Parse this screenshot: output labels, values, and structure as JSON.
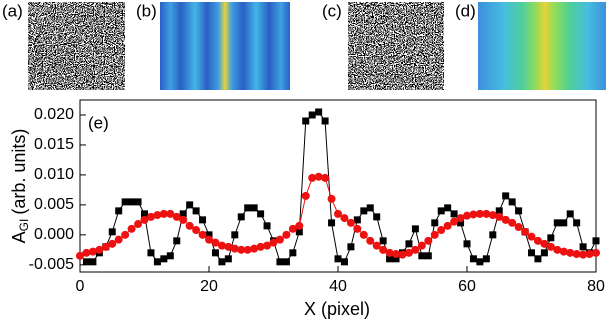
{
  "panels": {
    "labels": [
      "(a)",
      "(b)",
      "(c)",
      "(d)"
    ]
  },
  "chart_data": {
    "type": "line",
    "panel_label": "(e)",
    "x_label": "X (pixel)",
    "y_label": {
      "main": "A",
      "sub": "GI",
      "rest": "(arb. units)"
    },
    "xlim": [
      0,
      80
    ],
    "xticks": [
      0,
      20,
      40,
      60,
      80
    ],
    "ylim": [
      -0.0062,
      0.0225
    ],
    "yticks": [
      -0.005,
      {
        "value": 0,
        "label": "0.000"
      },
      0.005,
      {
        "value": 0.01,
        "label": "0.010"
      },
      0.015,
      {
        "value": 0.02,
        "label": "0.020"
      }
    ],
    "grid": false,
    "series": [
      {
        "color": "#000000",
        "marker": "square",
        "x": [
          1,
          2,
          3,
          4,
          5,
          6,
          7,
          8,
          9,
          10,
          11,
          12,
          13,
          14,
          15,
          16,
          17,
          18,
          19,
          20,
          21,
          22,
          23,
          24,
          25,
          26,
          27,
          28,
          29,
          30,
          31,
          32,
          33,
          34,
          35,
          36,
          37,
          38,
          39,
          40,
          41,
          42,
          43,
          44,
          45,
          46,
          47,
          48,
          49,
          50,
          51,
          52,
          53,
          54,
          55,
          56,
          57,
          58,
          59,
          60,
          61,
          62,
          63,
          64,
          65,
          66,
          67,
          68,
          69,
          70,
          71,
          72,
          73,
          74,
          75,
          76,
          77,
          78,
          79,
          80
        ],
        "values": [
          -0.0045,
          -0.0045,
          -0.003,
          -0.002,
          0.0005,
          0.004,
          0.0055,
          0.0055,
          0.0055,
          0.0035,
          -0.003,
          -0.0045,
          -0.004,
          -0.0035,
          -0.001,
          0.0035,
          0.005,
          0.004,
          0.0025,
          0.0,
          -0.003,
          -0.0045,
          -0.004,
          0.0,
          0.003,
          0.0045,
          0.0045,
          0.0035,
          0.0015,
          -0.001,
          -0.0045,
          -0.0045,
          -0.003,
          0.0005,
          0.019,
          0.02,
          0.0205,
          0.019,
          0.002,
          -0.004,
          -0.0045,
          -0.002,
          0.0025,
          0.004,
          0.0045,
          0.003,
          -0.001,
          -0.004,
          -0.004,
          -0.003,
          -0.0015,
          0.001,
          -0.0035,
          -0.0035,
          0.002,
          0.004,
          0.0045,
          0.0035,
          0.002,
          -0.0015,
          -0.004,
          -0.0045,
          -0.004,
          0.0,
          0.004,
          0.0065,
          0.0055,
          0.004,
          0.0005,
          -0.003,
          -0.004,
          -0.003,
          -0.0005,
          0.002,
          0.002,
          0.0035,
          0.002,
          -0.002,
          -0.003,
          -0.001
        ]
      },
      {
        "color": "#ee1111",
        "marker": "circle",
        "x": [
          0,
          1,
          2,
          3,
          4,
          5,
          6,
          7,
          8,
          9,
          10,
          11,
          12,
          13,
          14,
          15,
          16,
          17,
          18,
          19,
          20,
          21,
          22,
          23,
          24,
          25,
          26,
          27,
          28,
          29,
          30,
          31,
          32,
          33,
          34,
          35,
          36,
          37,
          38,
          39,
          40,
          41,
          42,
          43,
          44,
          45,
          46,
          47,
          48,
          49,
          50,
          51,
          52,
          53,
          54,
          55,
          56,
          57,
          58,
          59,
          60,
          61,
          62,
          63,
          64,
          65,
          66,
          67,
          68,
          69,
          70,
          71,
          72,
          73,
          74,
          75,
          76,
          77,
          78,
          79,
          80
        ],
        "values": [
          -0.0035,
          -0.003,
          -0.0028,
          -0.0025,
          -0.002,
          -0.0015,
          -0.0008,
          0.0,
          0.001,
          0.0018,
          0.0025,
          0.003,
          0.0033,
          0.0035,
          0.0035,
          0.003,
          0.0025,
          0.0015,
          0.0008,
          0.0,
          -0.0008,
          -0.0013,
          -0.0018,
          -0.002,
          -0.0023,
          -0.0025,
          -0.0025,
          -0.0023,
          -0.002,
          -0.0018,
          -0.0013,
          -0.0008,
          0.0,
          0.001,
          0.0015,
          0.0065,
          0.0095,
          0.0097,
          0.0095,
          0.006,
          0.0035,
          0.0028,
          0.002,
          0.001,
          0.0,
          -0.001,
          -0.0018,
          -0.0025,
          -0.003,
          -0.0032,
          -0.0033,
          -0.003,
          -0.0025,
          -0.0018,
          -0.001,
          0.0,
          0.0008,
          0.0015,
          0.0022,
          0.0028,
          0.0032,
          0.0034,
          0.0035,
          0.0035,
          0.0033,
          0.003,
          0.0025,
          0.002,
          0.0013,
          0.0005,
          -0.0003,
          -0.001,
          -0.0015,
          -0.002,
          -0.0025,
          -0.0028,
          -0.003,
          -0.0032,
          -0.0033,
          -0.0032,
          -0.003
        ]
      }
    ]
  }
}
